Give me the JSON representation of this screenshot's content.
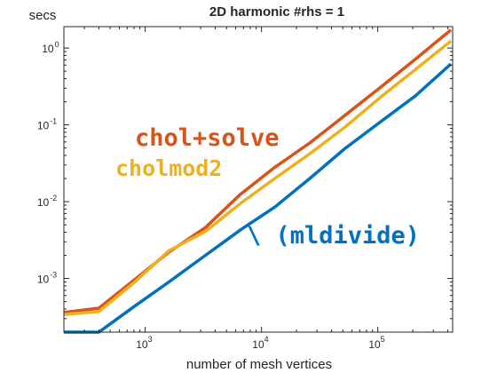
{
  "chart_data": {
    "type": "line",
    "title": "2D harmonic #rhs = 1",
    "xlabel": "number of mesh vertices",
    "ylabel": "secs",
    "xscale": "log",
    "yscale": "log",
    "xlim": [
      200,
      440000
    ],
    "ylim": [
      0.0002,
      1.9
    ],
    "grid": false,
    "xticks": [
      {
        "base": "10",
        "exp": "3",
        "value": 1000
      },
      {
        "base": "10",
        "exp": "4",
        "value": 10000
      },
      {
        "base": "10",
        "exp": "5",
        "value": 100000
      }
    ],
    "yticks": [
      {
        "base": "10",
        "exp": "-3",
        "value": 0.001
      },
      {
        "base": "10",
        "exp": "-2",
        "value": 0.01
      },
      {
        "base": "10",
        "exp": "-1",
        "value": 0.1
      },
      {
        "base": "10",
        "exp": "0",
        "value": 1
      }
    ],
    "x": [
      200,
      400,
      800,
      1600,
      3300,
      6600,
      13000,
      26000,
      53000,
      106000,
      212000,
      425000
    ],
    "series": [
      {
        "name": "chol+solve",
        "color": "#D95319",
        "values": [
          0.00036,
          0.00041,
          0.00095,
          0.0022,
          0.0046,
          0.0125,
          0.028,
          0.058,
          0.135,
          0.31,
          0.72,
          1.72
        ]
      },
      {
        "name": "cholmod2",
        "color": "#EDB120",
        "values": [
          0.00034,
          0.00037,
          0.00088,
          0.0023,
          0.0041,
          0.0095,
          0.02,
          0.042,
          0.095,
          0.23,
          0.53,
          1.23
        ]
      },
      {
        "name": "\\ (mldivide)",
        "color": "#0072BD",
        "values": [
          0.0002,
          0.0002,
          0.00043,
          0.0009,
          0.002,
          0.0043,
          0.0085,
          0.02,
          0.05,
          0.11,
          0.24,
          0.62
        ]
      }
    ]
  }
}
